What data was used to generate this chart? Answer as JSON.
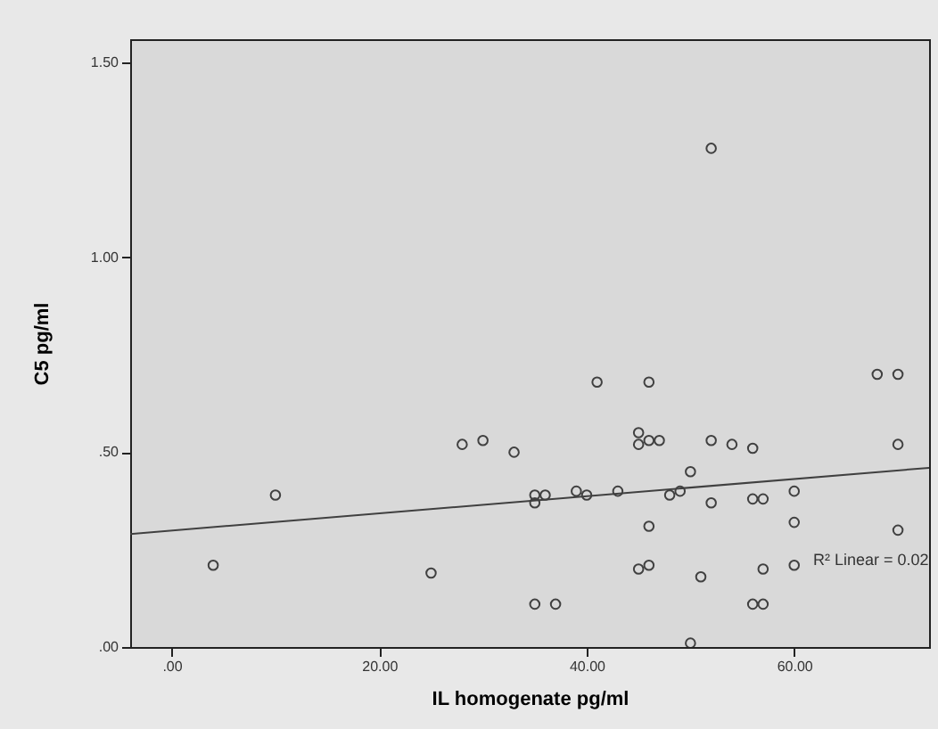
{
  "chart_data": {
    "type": "scatter",
    "xlabel": "IL homogenate pg/ml",
    "ylabel": "C5 pg/ml",
    "xlim": [
      -4,
      73
    ],
    "ylim": [
      0,
      1.56
    ],
    "xticks": [
      {
        "value": 0,
        "label": ".00"
      },
      {
        "value": 20,
        "label": "20.00"
      },
      {
        "value": 40,
        "label": "40.00"
      },
      {
        "value": 60,
        "label": "60.00"
      }
    ],
    "yticks": [
      {
        "value": 0,
        "label": ".00"
      },
      {
        "value": 0.5,
        "label": ".50"
      },
      {
        "value": 1,
        "label": "1.00"
      },
      {
        "value": 1.5,
        "label": "1.50"
      }
    ],
    "grid": false,
    "legend": false,
    "series": [
      {
        "type": "scatter",
        "color": "#404040",
        "marker": "circle",
        "x": [
          4,
          10,
          25,
          28,
          30,
          33,
          35,
          35,
          36,
          35,
          37,
          39,
          40,
          41,
          43,
          45,
          45,
          46,
          47,
          46,
          45,
          46,
          46,
          48,
          49,
          50,
          50,
          51,
          52,
          52,
          54,
          56,
          56,
          57,
          57,
          56,
          57,
          60,
          60,
          60,
          68,
          70,
          70,
          70,
          52
        ],
        "values": [
          0.21,
          0.39,
          0.19,
          0.52,
          0.53,
          0.5,
          0.39,
          0.37,
          0.39,
          0.11,
          0.11,
          0.4,
          0.39,
          0.68,
          0.4,
          0.55,
          0.52,
          0.53,
          0.53,
          0.68,
          0.2,
          0.21,
          0.31,
          0.39,
          0.4,
          0.45,
          0.01,
          0.18,
          0.53,
          0.37,
          0.52,
          0.51,
          0.38,
          0.38,
          0.2,
          0.11,
          0.11,
          0.4,
          0.32,
          0.21,
          0.7,
          0.7,
          0.52,
          0.3,
          1.28
        ]
      },
      {
        "type": "line",
        "color": "#404040",
        "marker": "none",
        "line_style": "solid",
        "x": [
          -4,
          73
        ],
        "values": [
          0.29,
          0.46
        ]
      }
    ],
    "annotations": [
      "R² Linear = 0.02"
    ]
  }
}
